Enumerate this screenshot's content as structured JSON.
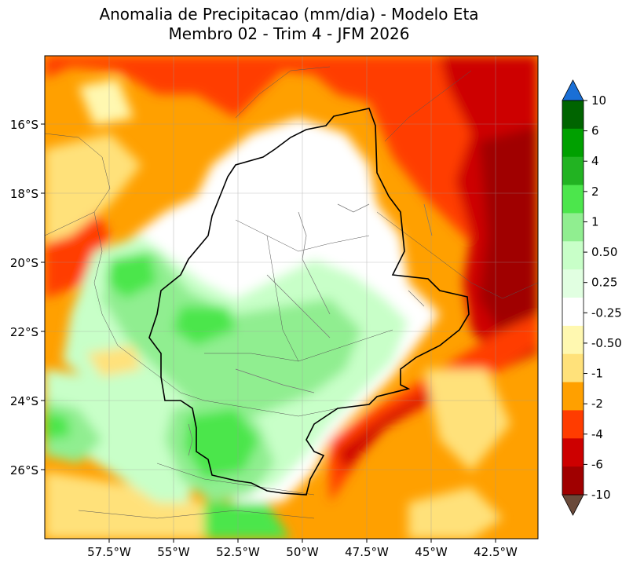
{
  "title": {
    "line1": "Anomalia de Precipitacao (mm/dia) - Modelo Eta",
    "line2": "Membro 02 - Trim 4 - JFM 2026"
  },
  "map": {
    "lat_ticks": [
      "16°S",
      "18°S",
      "20°S",
      "22°S",
      "24°S",
      "26°S"
    ],
    "lon_ticks": [
      "57.5°W",
      "55°W",
      "52.5°W",
      "50°W",
      "47.5°W",
      "45°W",
      "42.5°W"
    ]
  },
  "colorbar": {
    "labels": [
      "10",
      "6",
      "4",
      "2",
      "1",
      "0.50",
      "0.25",
      "-0.25",
      "-0.50",
      "-1",
      "-2",
      "-4",
      "-6",
      "-10"
    ],
    "colors": [
      "#006400",
      "#00a000",
      "#22b322",
      "#4ce64c",
      "#90ee90",
      "#c8ffc8",
      "#e1ffe1",
      "#ffffff",
      "#fff8b0",
      "#ffe17a",
      "#ffa000",
      "#ff3c00",
      "#cd0000",
      "#a00000"
    ],
    "over_color": "#1a6fd6",
    "under_color": "#6b4a3a"
  }
}
